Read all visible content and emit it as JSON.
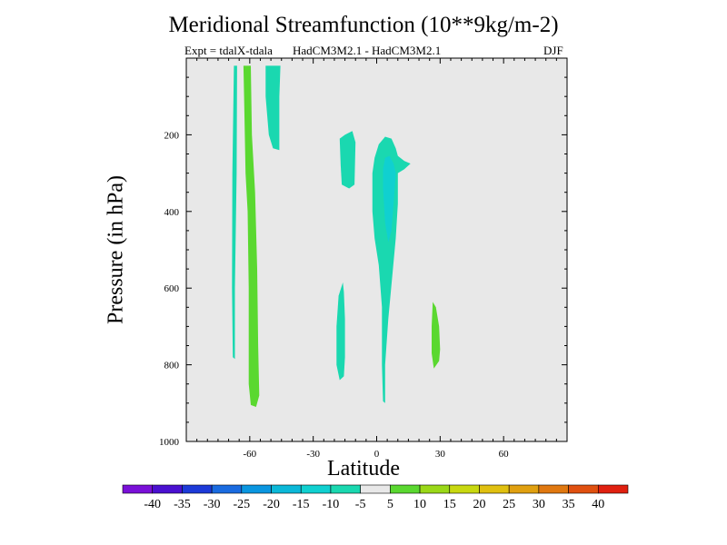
{
  "chart_data": {
    "type": "contour",
    "title": "Meridional Streamfunction (10**9kg/m-2)",
    "subtitle_left": "Expt = tdalX-tdala",
    "subtitle_center": "HadCM3M2.1 - HadCM3M2.1",
    "subtitle_right": "DJF",
    "xlabel": "Latitude",
    "ylabel": "Pressure (in hPa)",
    "xlim": [
      -90,
      90
    ],
    "ylim": [
      1000,
      0
    ],
    "x_ticks": [
      -60,
      -30,
      0,
      30,
      60
    ],
    "y_ticks": [
      200,
      400,
      600,
      800,
      1000
    ],
    "background_value_range": "-5 to 5",
    "colorbar": {
      "levels": [
        -40,
        -35,
        -30,
        -25,
        -20,
        -15,
        -10,
        -5,
        5,
        10,
        15,
        20,
        25,
        30,
        35,
        40
      ],
      "colors": [
        "#7a10d8",
        "#4a10d0",
        "#1d3ad8",
        "#1a6be0",
        "#0a96e0",
        "#0bb8d8",
        "#10d0d0",
        "#1ad8b0",
        "#e8e8e8",
        "#5ad830",
        "#9ad818",
        "#c8d810",
        "#e0c010",
        "#e0a010",
        "#e07810",
        "#e05010",
        "#e02010"
      ]
    },
    "regions": [
      {
        "name": "teal-band-65S",
        "color": "#1ad8b0",
        "range": "-10 to -5",
        "polygon": [
          [
            -67.5,
            20
          ],
          [
            -66,
            20
          ],
          [
            -66.2,
            300
          ],
          [
            -67,
            600
          ],
          [
            -67,
            785
          ],
          [
            -68,
            780
          ],
          [
            -68.4,
            600
          ],
          [
            -68.2,
            300
          ]
        ]
      },
      {
        "name": "green-band-58S",
        "color": "#5ad830",
        "range": "5 to 10",
        "polygon": [
          [
            -63,
            20
          ],
          [
            -59.5,
            20
          ],
          [
            -59,
            200
          ],
          [
            -57.5,
            350
          ],
          [
            -56.5,
            550
          ],
          [
            -56,
            750
          ],
          [
            -55.5,
            880
          ],
          [
            -57,
            910
          ],
          [
            -59.5,
            905
          ],
          [
            -60.5,
            850
          ],
          [
            -60.5,
            600
          ],
          [
            -61,
            400
          ],
          [
            -62,
            300
          ],
          [
            -62.5,
            150
          ]
        ]
      },
      {
        "name": "teal-blob-48S",
        "color": "#1ad8b0",
        "range": "-10 to -5",
        "polygon": [
          [
            -52.5,
            20
          ],
          [
            -45.5,
            20
          ],
          [
            -46,
            100
          ],
          [
            -46,
            240
          ],
          [
            -49,
            235
          ],
          [
            -51,
            200
          ],
          [
            -52.5,
            100
          ]
        ]
      },
      {
        "name": "teal-blob-15S",
        "color": "#1ad8b0",
        "range": "-10 to -5",
        "polygon": [
          [
            -17.5,
            210
          ],
          [
            -15,
            200
          ],
          [
            -11.5,
            190
          ],
          [
            -10,
            220
          ],
          [
            -10.5,
            330
          ],
          [
            -13,
            340
          ],
          [
            -16.5,
            330
          ],
          [
            -17,
            280
          ]
        ]
      },
      {
        "name": "teal-blob-18S-lower",
        "color": "#1ad8b0",
        "range": "-10 to -5",
        "polygon": [
          [
            -16,
            585
          ],
          [
            -18,
            620
          ],
          [
            -19,
            700
          ],
          [
            -19,
            800
          ],
          [
            -17.5,
            840
          ],
          [
            -15.5,
            830
          ],
          [
            -15,
            780
          ],
          [
            -15,
            680
          ],
          [
            -15.5,
            610
          ]
        ]
      },
      {
        "name": "teal-cell-5N",
        "color": "#1ad8b0",
        "range": "-10 to -5",
        "polygon": [
          [
            -1,
            260
          ],
          [
            1,
            225
          ],
          [
            4,
            205
          ],
          [
            7,
            210
          ],
          [
            9,
            235
          ],
          [
            10,
            255
          ],
          [
            13,
            268
          ],
          [
            16,
            275
          ],
          [
            13,
            290
          ],
          [
            10,
            300
          ],
          [
            10,
            380
          ],
          [
            9,
            470
          ],
          [
            7.5,
            560
          ],
          [
            5.5,
            680
          ],
          [
            4,
            800
          ],
          [
            4,
            900
          ],
          [
            3,
            895
          ],
          [
            2.5,
            800
          ],
          [
            2.5,
            650
          ],
          [
            1,
            540
          ],
          [
            -1,
            470
          ],
          [
            -2,
            400
          ],
          [
            -2,
            300
          ]
        ]
      },
      {
        "name": "cyan-core-5N",
        "color": "#10d0d0",
        "range": "-15 to -10",
        "polygon": [
          [
            4,
            260
          ],
          [
            6,
            255
          ],
          [
            8,
            275
          ],
          [
            9,
            300
          ],
          [
            8,
            380
          ],
          [
            7,
            450
          ],
          [
            5.5,
            480
          ],
          [
            4,
            430
          ],
          [
            3,
            340
          ],
          [
            3,
            290
          ]
        ]
      },
      {
        "name": "green-blob-28N",
        "color": "#5ad830",
        "range": "5 to 10",
        "polygon": [
          [
            26.5,
            636
          ],
          [
            28,
            650
          ],
          [
            29.5,
            700
          ],
          [
            30,
            760
          ],
          [
            29.5,
            790
          ],
          [
            27,
            810
          ],
          [
            26,
            770
          ],
          [
            26,
            700
          ]
        ]
      }
    ]
  }
}
